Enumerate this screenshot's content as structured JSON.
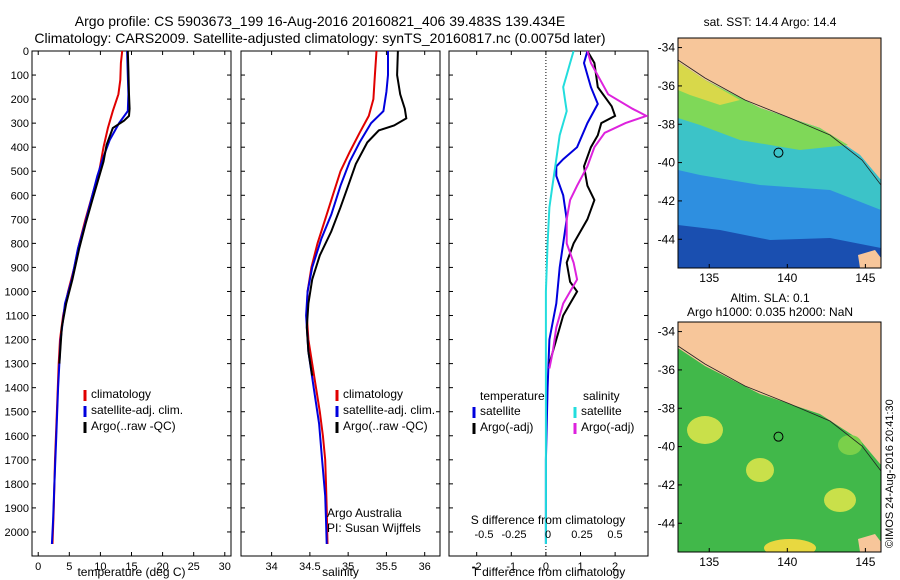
{
  "header": {
    "line1": "Argo profile: CS 5903673_199 16-Aug-2016 20160821_406 39.483S 139.434E",
    "line2": "Climatology: CARS2009. Satellite-adjusted climatology: synTS_20160817.nc (0.0075d later)"
  },
  "credit": "©IMOS 24-Aug-2016 20:41:30",
  "colors": {
    "climatology": "#e00000",
    "satellite": "#0000dd",
    "argo": "#000000",
    "cyan": "#22dddd",
    "magenta": "#dd22dd",
    "land": "#f7c69a"
  },
  "chart_data": [
    {
      "type": "line",
      "xlabel": "temperature (deg C)",
      "ylim": [
        2100,
        0
      ],
      "xlim": [
        -1,
        31
      ],
      "xticks": [
        "0",
        "5",
        "10",
        "15",
        "20",
        "25",
        "30"
      ],
      "yticks": [
        "0",
        "100",
        "200",
        "300",
        "400",
        "500",
        "600",
        "700",
        "800",
        "900",
        "1000",
        "1100",
        "1200",
        "1300",
        "1400",
        "1500",
        "1600",
        "1700",
        "1800",
        "1900",
        "2000"
      ],
      "legend": [
        "climatology",
        "satellite-adj. clim.",
        "Argo(..raw -QC)"
      ],
      "series": [
        {
          "name": "climatology",
          "color": "#e00000",
          "points": [
            [
              13.5,
              0
            ],
            [
              13.3,
              50
            ],
            [
              13.2,
              120
            ],
            [
              12.9,
              180
            ],
            [
              12.0,
              250
            ],
            [
              11.2,
              320
            ],
            [
              10.5,
              400
            ],
            [
              9.8,
              500
            ],
            [
              8.7,
              600
            ],
            [
              7.6,
              700
            ],
            [
              6.6,
              800
            ],
            [
              5.8,
              900
            ],
            [
              4.8,
              1000
            ],
            [
              4.0,
              1100
            ],
            [
              3.5,
              1200
            ],
            [
              3.3,
              1300
            ],
            [
              3.0,
              1500
            ],
            [
              2.7,
              1700
            ],
            [
              2.5,
              1900
            ],
            [
              2.3,
              2050
            ]
          ]
        },
        {
          "name": "satellite-adj. clim.",
          "color": "#0000dd",
          "points": [
            [
              14.3,
              0
            ],
            [
              14.4,
              100
            ],
            [
              14.5,
              180
            ],
            [
              14.4,
              250
            ],
            [
              13.0,
              300
            ],
            [
              11.5,
              370
            ],
            [
              10.5,
              440
            ],
            [
              9.5,
              520
            ],
            [
              8.5,
              620
            ],
            [
              7.5,
              720
            ],
            [
              6.4,
              820
            ],
            [
              5.4,
              950
            ],
            [
              4.3,
              1050
            ],
            [
              3.6,
              1200
            ],
            [
              3.2,
              1400
            ],
            [
              2.9,
              1600
            ],
            [
              2.6,
              1800
            ],
            [
              2.4,
              1950
            ],
            [
              2.2,
              2050
            ]
          ]
        },
        {
          "name": "Argo(..raw -QC)",
          "color": "#000000",
          "points": [
            [
              14.4,
              0
            ],
            [
              14.5,
              80
            ],
            [
              14.6,
              180
            ],
            [
              14.7,
              240
            ],
            [
              14.6,
              270
            ],
            [
              13.8,
              290
            ],
            [
              12.0,
              320
            ],
            [
              11.0,
              390
            ],
            [
              10.5,
              460
            ],
            [
              9.6,
              540
            ],
            [
              8.7,
              620
            ],
            [
              7.6,
              720
            ],
            [
              6.6,
              820
            ],
            [
              5.5,
              950
            ],
            [
              4.5,
              1050
            ],
            [
              3.8,
              1150
            ],
            [
              3.4,
              1300
            ]
          ]
        }
      ]
    },
    {
      "type": "line",
      "xlabel": "salinity",
      "ylim": [
        2100,
        0
      ],
      "xlim": [
        33.6,
        36.2
      ],
      "xticks": [
        "34",
        "34.5",
        "35",
        "35.5",
        "36"
      ],
      "legend": [
        "climatology",
        "satellite-adj. clim.",
        "Argo(..raw -QC)"
      ],
      "annotations": [
        "Argo Australia",
        "PI: Susan Wijffels"
      ],
      "series": [
        {
          "name": "climatology",
          "color": "#e00000",
          "points": [
            [
              35.37,
              0
            ],
            [
              35.35,
              100
            ],
            [
              35.33,
              200
            ],
            [
              35.27,
              270
            ],
            [
              35.15,
              340
            ],
            [
              35.02,
              420
            ],
            [
              34.9,
              500
            ],
            [
              34.8,
              600
            ],
            [
              34.7,
              700
            ],
            [
              34.6,
              800
            ],
            [
              34.52,
              900
            ],
            [
              34.47,
              1000
            ],
            [
              34.46,
              1100
            ],
            [
              34.48,
              1200
            ],
            [
              34.53,
              1300
            ],
            [
              34.58,
              1400
            ],
            [
              34.63,
              1500
            ],
            [
              34.67,
              1600
            ],
            [
              34.7,
              1700
            ],
            [
              34.71,
              1800
            ],
            [
              34.72,
              1900
            ],
            [
              34.73,
              2050
            ]
          ]
        },
        {
          "name": "satellite-adj. clim.",
          "color": "#0000dd",
          "points": [
            [
              35.52,
              0
            ],
            [
              35.52,
              100
            ],
            [
              35.5,
              170
            ],
            [
              35.46,
              250
            ],
            [
              35.3,
              300
            ],
            [
              35.15,
              380
            ],
            [
              35.02,
              460
            ],
            [
              34.9,
              560
            ],
            [
              34.78,
              680
            ],
            [
              34.65,
              780
            ],
            [
              34.53,
              900
            ],
            [
              34.47,
              1000
            ],
            [
              34.45,
              1100
            ],
            [
              34.48,
              1250
            ],
            [
              34.55,
              1400
            ],
            [
              34.62,
              1550
            ],
            [
              34.66,
              1700
            ],
            [
              34.7,
              1850
            ],
            [
              34.71,
              1950
            ],
            [
              34.72,
              2050
            ]
          ]
        },
        {
          "name": "Argo(..raw -QC)",
          "color": "#000000",
          "points": [
            [
              35.65,
              0
            ],
            [
              35.64,
              100
            ],
            [
              35.68,
              180
            ],
            [
              35.74,
              240
            ],
            [
              35.76,
              280
            ],
            [
              35.6,
              310
            ],
            [
              35.4,
              330
            ],
            [
              35.25,
              380
            ],
            [
              35.1,
              470
            ],
            [
              35.0,
              560
            ],
            [
              34.9,
              650
            ],
            [
              34.78,
              750
            ],
            [
              34.63,
              850
            ],
            [
              34.53,
              950
            ],
            [
              34.48,
              1050
            ],
            [
              34.46,
              1150
            ],
            [
              34.48,
              1250
            ],
            [
              34.53,
              1350
            ]
          ]
        }
      ]
    },
    {
      "type": "line",
      "xlabel": "T difference from climatology",
      "xlabel2": "S difference from climatology",
      "ylim": [
        2100,
        0
      ],
      "xlim": [
        -2.8,
        2.95
      ],
      "xticks": [
        "-2",
        "-1",
        "0",
        "1",
        "2"
      ],
      "xticks_top": [
        "-0.5",
        "-0.25",
        "0",
        "0.25",
        "0.5"
      ],
      "legend_left_title": "temperature",
      "legend_left": [
        "satellite",
        "Argo(-adj)"
      ],
      "legend_right_title": "salinity",
      "legend_right": [
        "satellite",
        "Argo(-adj)"
      ],
      "series": [
        {
          "name": "temperature satellite",
          "color": "#0000dd",
          "points": [
            [
              1.2,
              0
            ],
            [
              1.1,
              50
            ],
            [
              1.2,
              100
            ],
            [
              1.3,
              150
            ],
            [
              1.5,
              220
            ],
            [
              1.2,
              300
            ],
            [
              0.9,
              400
            ],
            [
              0.5,
              450
            ],
            [
              0.3,
              480
            ],
            [
              0.3,
              520
            ],
            [
              0.5,
              600
            ],
            [
              0.6,
              700
            ],
            [
              0.5,
              800
            ],
            [
              0.4,
              900
            ],
            [
              0.3,
              1050
            ],
            [
              0.1,
              1200
            ],
            [
              0.05,
              1400
            ],
            [
              0.0,
              1700
            ],
            [
              0.0,
              2050
            ]
          ]
        },
        {
          "name": "temperature Argo(-adj)",
          "color": "#000000",
          "points": [
            [
              1.2,
              0
            ],
            [
              1.4,
              50
            ],
            [
              1.5,
              150
            ],
            [
              1.9,
              230
            ],
            [
              2.0,
              270
            ],
            [
              1.6,
              300
            ],
            [
              1.5,
              350
            ],
            [
              1.3,
              400
            ],
            [
              1.1,
              480
            ],
            [
              1.2,
              560
            ],
            [
              1.4,
              620
            ],
            [
              1.2,
              700
            ],
            [
              0.8,
              800
            ],
            [
              0.6,
              880
            ],
            [
              0.7,
              960
            ],
            [
              0.9,
              1000
            ],
            [
              0.7,
              1050
            ],
            [
              0.5,
              1100
            ],
            [
              0.3,
              1200
            ],
            [
              0.1,
              1300
            ]
          ]
        },
        {
          "name": "salinity satellite",
          "color": "#22dddd",
          "points": [
            [
              0.8,
              0
            ],
            [
              0.7,
              50
            ],
            [
              0.6,
              100
            ],
            [
              0.5,
              150
            ],
            [
              0.55,
              200
            ],
            [
              0.6,
              250
            ],
            [
              0.5,
              300
            ],
            [
              0.4,
              350
            ],
            [
              0.3,
              450
            ],
            [
              0.2,
              550
            ],
            [
              0.1,
              650
            ],
            [
              0.05,
              800
            ],
            [
              0.0,
              1000
            ],
            [
              0.0,
              2050
            ]
          ]
        },
        {
          "name": "salinity Argo(-adj)",
          "color": "#dd22dd",
          "points": [
            [
              1.2,
              0
            ],
            [
              1.3,
              50
            ],
            [
              1.8,
              180
            ],
            [
              2.5,
              240
            ],
            [
              2.9,
              270
            ],
            [
              2.3,
              300
            ],
            [
              1.7,
              340
            ],
            [
              1.4,
              400
            ],
            [
              1.2,
              480
            ],
            [
              0.9,
              560
            ],
            [
              0.7,
              620
            ],
            [
              0.6,
              700
            ],
            [
              0.6,
              800
            ],
            [
              0.8,
              880
            ],
            [
              0.9,
              950
            ],
            [
              0.5,
              1050
            ],
            [
              0.3,
              1150
            ],
            [
              0.2,
              1250
            ],
            [
              0.1,
              1320
            ]
          ]
        }
      ]
    },
    {
      "type": "heatmap",
      "title": "sat. SST: 14.4 Argo: 14.4",
      "xticks": [
        "135",
        "140",
        "145"
      ],
      "yticks": [
        "-34",
        "-36",
        "-38",
        "-40",
        "-42",
        "-44"
      ],
      "xlim": [
        133,
        146
      ],
      "ylim": [
        -45.5,
        -33.5
      ],
      "marker": {
        "lon": 139.434,
        "lat": -39.483
      }
    },
    {
      "type": "heatmap",
      "title": "Altim. SLA: 0.1",
      "title2": "Argo h1000: 0.035 h2000: NaN",
      "xticks": [
        "135",
        "140",
        "145"
      ],
      "yticks": [
        "-34",
        "-36",
        "-38",
        "-40",
        "-42",
        "-44"
      ],
      "xlim": [
        133,
        146
      ],
      "ylim": [
        -45.5,
        -33.5
      ],
      "marker": {
        "lon": 139.434,
        "lat": -39.483
      }
    }
  ]
}
